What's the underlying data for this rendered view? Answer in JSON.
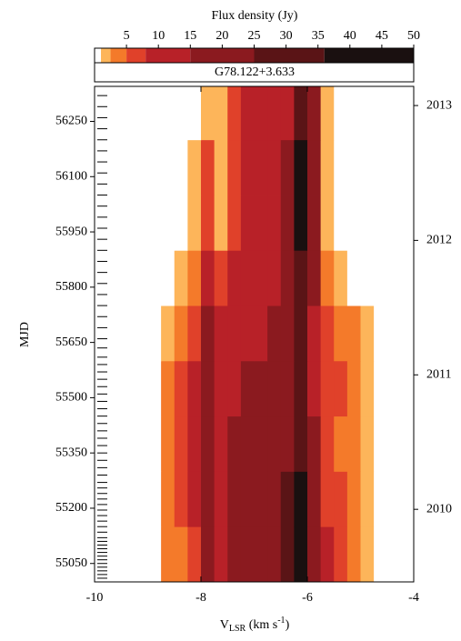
{
  "chart_data": {
    "type": "heatmap",
    "title": "G78.122+3.633",
    "xlabel": [
      "V",
      "LSR",
      " (km s",
      "-1",
      ")"
    ],
    "ylabel": "MJD",
    "xlim": [
      -10,
      -4
    ],
    "xticks": [
      -10,
      -8,
      -6,
      -4
    ],
    "ylim": [
      55000,
      56345
    ],
    "yticks": [
      55050,
      55200,
      55350,
      55500,
      55650,
      55800,
      55950,
      56100,
      56250
    ],
    "y2lim": [
      55000,
      56345
    ],
    "y2ticks": [
      {
        "value": 55197,
        "label": "2010"
      },
      {
        "value": 55562,
        "label": "2011"
      },
      {
        "value": 55927,
        "label": "2012"
      },
      {
        "value": 56293,
        "label": "2013"
      }
    ],
    "x": [
      -9,
      -8.75,
      -8.5,
      -8.25,
      -8,
      -7.75,
      -7.5,
      -7.25,
      -7,
      -6.75,
      -6.5,
      -6.25,
      -6,
      -5.75,
      -5.5,
      -5.25,
      -5,
      -4.75,
      -4.5
    ],
    "y": [
      55000,
      55150,
      55300,
      55450,
      55600,
      55750,
      55900,
      56050,
      56200,
      56345
    ],
    "z": [
      [
        0,
        3,
        4,
        7,
        18,
        12,
        15,
        20,
        20,
        22,
        28,
        38,
        20,
        8,
        5,
        4,
        2,
        0
      ],
      [
        0,
        3,
        5,
        8,
        20,
        12,
        15,
        18,
        18,
        20,
        26,
        36,
        18,
        7,
        5,
        4,
        2,
        0
      ],
      [
        0,
        3,
        5,
        8,
        22,
        12,
        15,
        18,
        20,
        18,
        24,
        34,
        16,
        6,
        4,
        3,
        2,
        0
      ],
      [
        0,
        3,
        5,
        8,
        20,
        12,
        14,
        17,
        18,
        17,
        22,
        32,
        14,
        6,
        5,
        3,
        2,
        0
      ],
      [
        0,
        2,
        4,
        6,
        16,
        10,
        12,
        14,
        14,
        15,
        20,
        32,
        14,
        6,
        4,
        3,
        1,
        0
      ],
      [
        0,
        0,
        1,
        3,
        10,
        5,
        9,
        12,
        12,
        13,
        18,
        34,
        16,
        4,
        1,
        0,
        0,
        0
      ],
      [
        0,
        0,
        0,
        1,
        5,
        2,
        7,
        10,
        10,
        11,
        16,
        38,
        18,
        2,
        0,
        0,
        0,
        0
      ],
      [
        0,
        0,
        0,
        1,
        5,
        2,
        7,
        9,
        9,
        10,
        16,
        36,
        17,
        2,
        0,
        0,
        0,
        0
      ],
      [
        0,
        0,
        0,
        0,
        1,
        1,
        6,
        8,
        8,
        9,
        14,
        34,
        16,
        1,
        0,
        0,
        0,
        0
      ]
    ],
    "observations": [
      55010,
      55020,
      55030,
      55040,
      55050,
      55060,
      55070,
      55080,
      55090,
      55100,
      55110,
      55120,
      55135,
      55150,
      55165,
      55180,
      55195,
      55210,
      55225,
      55240,
      55255,
      55270,
      55290,
      55310,
      55330,
      55350,
      55370,
      55390,
      55410,
      55430,
      55450,
      55470,
      55490,
      55510,
      55530,
      55550,
      55570,
      55590,
      55610,
      55635,
      55660,
      55690,
      55720,
      55750,
      55780,
      55810,
      55840,
      55870,
      55900,
      55930,
      55960,
      55990,
      56020,
      56050,
      56080,
      56110,
      56140,
      56170,
      56200,
      56230,
      56260,
      56290,
      56320
    ],
    "colorbar": {
      "label": "Flux density (Jy)",
      "lim": [
        0,
        50
      ],
      "ticks": [
        5,
        10,
        15,
        20,
        25,
        30,
        35,
        40,
        45,
        50
      ],
      "levels": [
        0,
        1,
        2.5,
        5,
        8,
        15,
        25,
        36,
        50
      ],
      "colors": [
        "#ffffff",
        "#fdb55a",
        "#f47a2a",
        "#e0412a",
        "#b82128",
        "#8b1a1f",
        "#5a1416",
        "#1a1010"
      ]
    }
  }
}
